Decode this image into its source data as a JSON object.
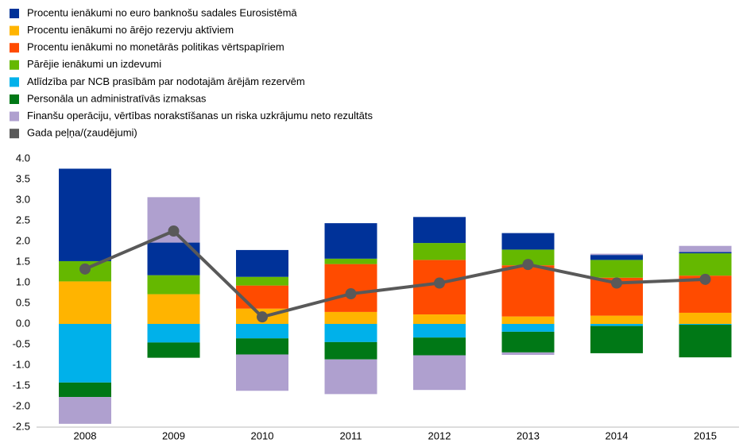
{
  "chart_data": {
    "type": "bar",
    "categories": [
      "2008",
      "2009",
      "2010",
      "2011",
      "2012",
      "2013",
      "2014",
      "2015"
    ],
    "series": [
      {
        "name": "Procentu ienākumi no euro banknošu sadales Eurosistēmā",
        "color": "#003299",
        "values": [
          2.24,
          0.79,
          0.65,
          0.86,
          0.63,
          0.4,
          0.12,
          0.03
        ]
      },
      {
        "name": "Procentu ienākumi no ārējo rezervju aktīviem",
        "color": "#ffb400",
        "values": [
          1.03,
          0.72,
          0.37,
          0.29,
          0.23,
          0.18,
          0.2,
          0.27
        ]
      },
      {
        "name": "Procentu ienākumi no monetārās politikas vērtspapīriem",
        "color": "#ff4b00",
        "values": [
          0,
          0,
          0.56,
          1.16,
          1.32,
          1.24,
          0.92,
          0.9
        ]
      },
      {
        "name": "Pārējie ienākumi un izdevumi",
        "color": "#65b800",
        "values": [
          0.49,
          0.46,
          0.21,
          0.13,
          0.41,
          0.38,
          0.43,
          0.54
        ]
      },
      {
        "name": "Atlīdzība par NCB prasībām par nodotajām ārējām rezervēm",
        "color": "#00b1ea",
        "values": [
          -1.42,
          -0.45,
          -0.35,
          -0.44,
          -0.33,
          -0.19,
          -0.05,
          -0.02
        ]
      },
      {
        "name": "Personāla un administratīvās izmaksas",
        "color": "#007816",
        "values": [
          -0.35,
          -0.37,
          -0.39,
          -0.42,
          -0.43,
          -0.5,
          -0.66,
          -0.79
        ]
      },
      {
        "name": "Finanšu operāciju, vērtības norakstīšanas un riska uzkrājumu neto rezultāts",
        "color": "#afa0cf",
        "values": [
          -0.65,
          1.1,
          -0.88,
          -0.84,
          -0.84,
          -0.06,
          0.03,
          0.15
        ]
      },
      {
        "name": "Gada peļņa/(zaudējumi)",
        "color": "#595959",
        "type": "line",
        "values": [
          1.33,
          2.25,
          0.17,
          0.73,
          0.99,
          1.44,
          0.99,
          1.08
        ]
      }
    ],
    "ylim": [
      -2.5,
      4.0
    ],
    "yticks": [
      {
        "value": 4,
        "label": "4.0"
      },
      {
        "value": 3.5,
        "label": "3.5"
      },
      {
        "value": 3,
        "label": "3.0"
      },
      {
        "value": 2.5,
        "label": "2.5"
      },
      {
        "value": 2,
        "label": "2.0"
      },
      {
        "value": 1.5,
        "label": "1.5"
      },
      {
        "value": 1,
        "label": "1.0"
      },
      {
        "value": 0.5,
        "label": "0.5"
      },
      {
        "value": 0,
        "label": "0.0"
      },
      {
        "value": -0.5,
        "label": "-0.5"
      },
      {
        "value": -1,
        "label": "-1.0"
      },
      {
        "value": -1.5,
        "label": "-1.5"
      },
      {
        "value": -2,
        "label": "-2.0"
      },
      {
        "value": -2.5,
        "label": "-2.5"
      }
    ],
    "grid": false,
    "legend": "top-left"
  }
}
